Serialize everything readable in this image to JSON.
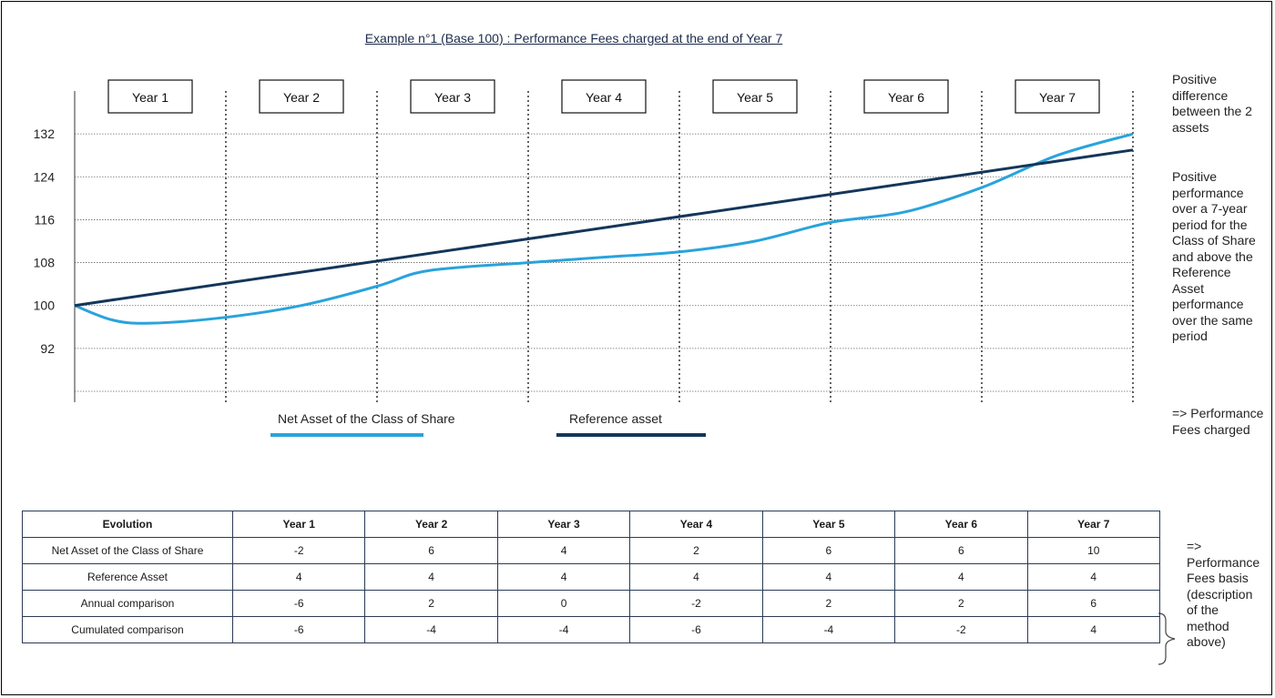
{
  "title": "Example  n°1 (Base 100) : Performance Fees charged at the end of Year 7",
  "colors": {
    "net_asset": "#29a3dc",
    "reference": "#14365a",
    "grid": "#555555"
  },
  "chart_data": {
    "type": "line",
    "categories": [
      "Year 1",
      "Year 2",
      "Year 3",
      "Year 4",
      "Year 5",
      "Year 6",
      "Year 7"
    ],
    "yticks": [
      92,
      100,
      108,
      116,
      124,
      132
    ],
    "ylim": [
      84,
      140
    ],
    "xlim": [
      0,
      7
    ],
    "series": [
      {
        "name": "Net Asset of the Class of Share",
        "color": "#29a3dc",
        "x": [
          0,
          0.25,
          0.5,
          1,
          1.5,
          2,
          2.25,
          2.5,
          3,
          3.5,
          4,
          4.5,
          5,
          5.5,
          6,
          6.5,
          7
        ],
        "values": [
          100,
          97.3,
          96.7,
          97.8,
          100,
          103.6,
          106,
          107,
          108,
          109,
          110,
          112,
          115.5,
          117.5,
          122,
          128,
          132
        ]
      },
      {
        "name": "Reference asset",
        "color": "#14365a",
        "x": [
          0,
          7
        ],
        "values": [
          100,
          129
        ]
      }
    ],
    "legend": [
      "Net Asset of the Class of Share",
      "Reference asset"
    ],
    "legend_position": "bottom"
  },
  "notes": {
    "n1": [
      "Positive",
      "difference",
      "between the 2",
      "assets"
    ],
    "n2": [
      "Positive",
      "performance",
      "over a 7-year",
      "period for the",
      "Class of Share",
      "and above the",
      "Reference",
      "Asset",
      "performance",
      "over the same",
      "period"
    ],
    "n3": [
      "=> Performance",
      "Fees charged"
    ],
    "n4": [
      "=>",
      "Performance",
      "Fees basis",
      "(description",
      "of the",
      "method",
      "above)"
    ]
  },
  "table": {
    "headers": [
      "Evolution",
      "Year 1",
      "Year 2",
      "Year 3",
      "Year 4",
      "Year 5",
      "Year 6",
      "Year 7"
    ],
    "rows": [
      [
        "Net Asset of the Class of Share",
        "-2",
        "6",
        "4",
        "2",
        "6",
        "6",
        "10"
      ],
      [
        "Reference Asset",
        "4",
        "4",
        "4",
        "4",
        "4",
        "4",
        "4"
      ],
      [
        "Annual comparison",
        "-6",
        "2",
        "0",
        "-2",
        "2",
        "2",
        "6"
      ],
      [
        "Cumulated comparison",
        "-6",
        "-4",
        "-4",
        "-6",
        "-4",
        "-2",
        "4"
      ]
    ]
  }
}
